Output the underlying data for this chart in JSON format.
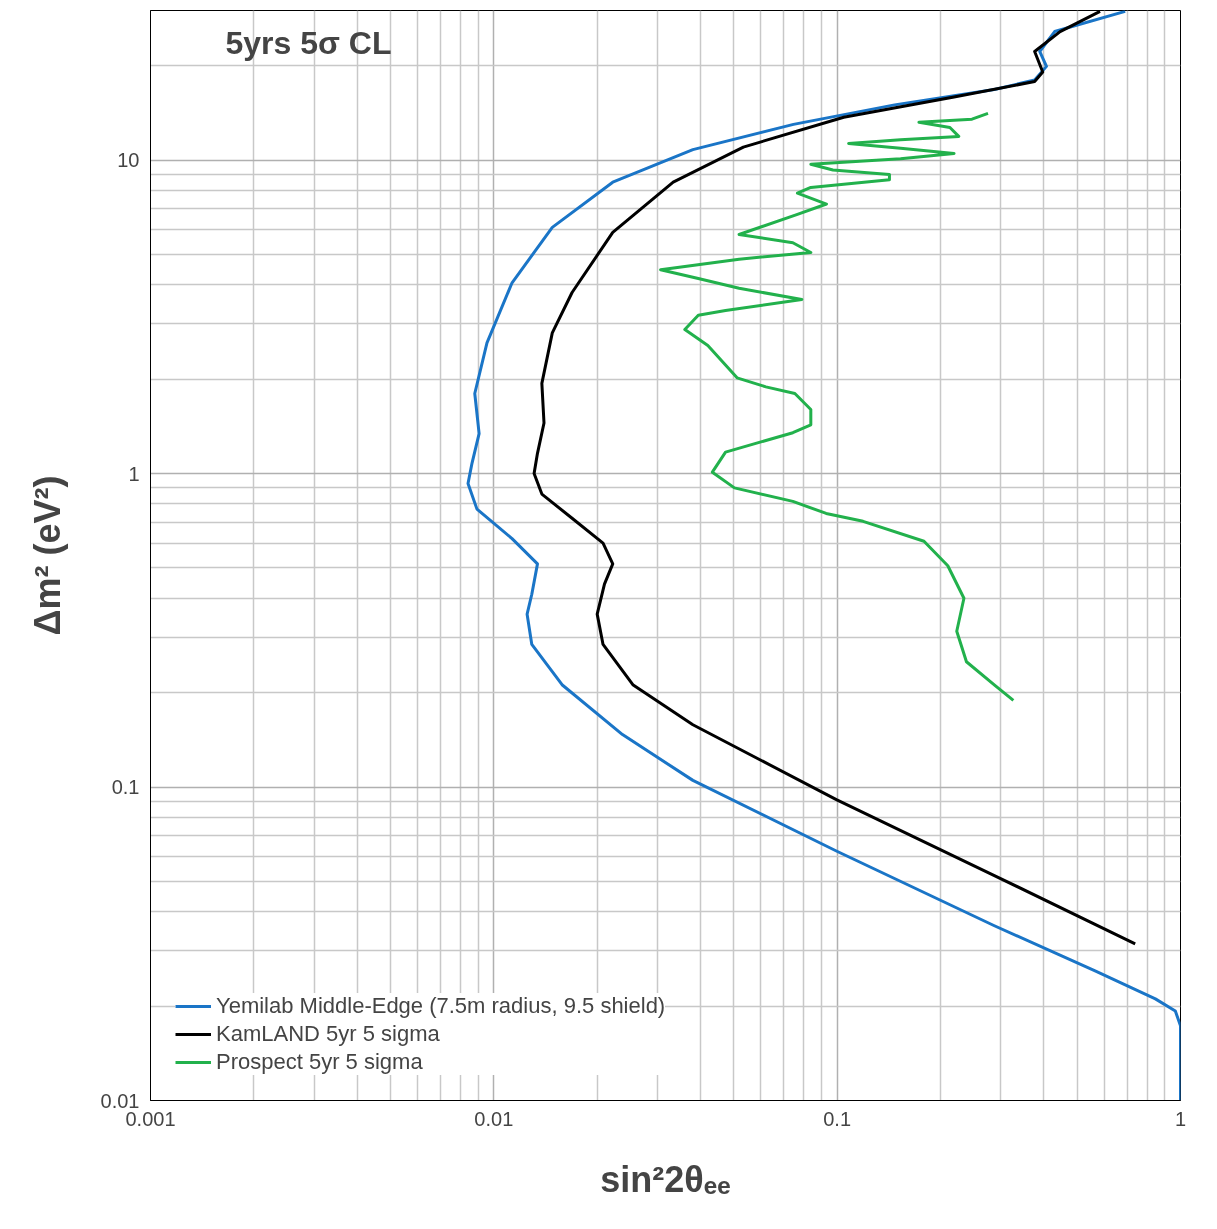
{
  "chart_data": {
    "type": "line",
    "xlabel": "sin²2θₑₑ",
    "ylabel": "Δm² (eV²)",
    "log": "xy",
    "xlim": [
      0.001,
      1
    ],
    "ylim": [
      0.01,
      30
    ],
    "xticks": [
      0.001,
      0.01,
      0.1,
      1
    ],
    "yticks": [
      0.01,
      0.1,
      1,
      10
    ],
    "grid": true,
    "legend": "bottom left",
    "line_style": "solid",
    "marker": "none",
    "annotations": [
      "5yrs 5σ CL"
    ],
    "series": [
      {
        "name": "Yemilab Middle-Edge (7.5m radius, 9.5 shield)",
        "color": "#1a75c7",
        "x": [
          0.69,
          0.43,
          0.389,
          0.407,
          0.376,
          0.287,
          0.147,
          0.0746,
          0.038,
          0.0222,
          0.0148,
          0.0113,
          0.00955,
          0.0088,
          0.00906,
          0.00864,
          0.00841,
          0.00893,
          0.0113,
          0.0134,
          0.0129,
          0.0125,
          0.0129,
          0.0158,
          0.0237,
          0.038,
          0.0998,
          0.287,
          0.564,
          0.845,
          0.966,
          1.0,
          1.0
        ],
        "values": [
          29.8,
          25.7,
          22.2,
          19.9,
          18.0,
          16.8,
          15.0,
          13.0,
          10.8,
          8.5,
          6.1,
          4.06,
          2.61,
          1.8,
          1.34,
          1.08,
          0.93,
          0.77,
          0.62,
          0.515,
          0.412,
          0.356,
          0.285,
          0.212,
          0.147,
          0.105,
          0.0624,
          0.0361,
          0.0259,
          0.0211,
          0.0193,
          0.0173,
          0.01
        ]
      },
      {
        "name": "KamLAND 5yr 5 sigma",
        "color": "#000000",
        "x": [
          0.583,
          0.446,
          0.376,
          0.397,
          0.376,
          0.219,
          0.1045,
          0.0533,
          0.0333,
          0.0222,
          0.0169,
          0.0148,
          0.0138,
          0.014,
          0.0134,
          0.0131,
          0.0138,
          0.0169,
          0.0208,
          0.0222,
          0.021,
          0.02,
          0.0208,
          0.0254,
          0.038,
          0.0998,
          0.287,
          0.738
        ],
        "values": [
          29.8,
          25.7,
          22.2,
          19.1,
          17.8,
          15.9,
          13.7,
          11.0,
          8.5,
          5.88,
          3.78,
          2.81,
          1.94,
          1.45,
          1.16,
          1.0,
          0.86,
          0.72,
          0.6,
          0.515,
          0.444,
          0.356,
          0.285,
          0.212,
          0.158,
          0.091,
          0.0522,
          0.0316
        ]
      },
      {
        "name": "Prospect 5yr 5 sigma",
        "color": "#22b14c",
        "x": [
          0.275,
          0.247,
          0.173,
          0.213,
          0.226,
          0.153,
          0.108,
          0.153,
          0.219,
          0.153,
          0.0838,
          0.0972,
          0.142,
          0.142,
          0.0838,
          0.0766,
          0.0931,
          0.0766,
          0.0518,
          0.0743,
          0.0838,
          0.0518,
          0.0306,
          0.0394,
          0.0518,
          0.0789,
          0.0473,
          0.0394,
          0.036,
          0.042,
          0.0511,
          0.062,
          0.0753,
          0.0838,
          0.0838,
          0.0743,
          0.0473,
          0.0433,
          0.0502,
          0.0743,
          0.0929,
          0.119,
          0.179,
          0.21,
          0.234,
          0.223,
          0.238,
          0.288,
          0.326
        ],
        "values": [
          14.1,
          13.5,
          13.2,
          12.7,
          11.9,
          11.6,
          11.3,
          10.9,
          10.5,
          10.1,
          9.7,
          9.3,
          9.0,
          8.65,
          8.18,
          7.84,
          7.24,
          6.71,
          5.79,
          5.45,
          5.07,
          4.83,
          4.47,
          4.19,
          3.9,
          3.59,
          3.31,
          3.2,
          2.88,
          2.56,
          2.02,
          1.89,
          1.8,
          1.6,
          1.43,
          1.35,
          1.17,
          1.01,
          0.9,
          0.815,
          0.746,
          0.704,
          0.608,
          0.508,
          0.4,
          0.314,
          0.251,
          0.211,
          0.189
        ]
      }
    ]
  }
}
